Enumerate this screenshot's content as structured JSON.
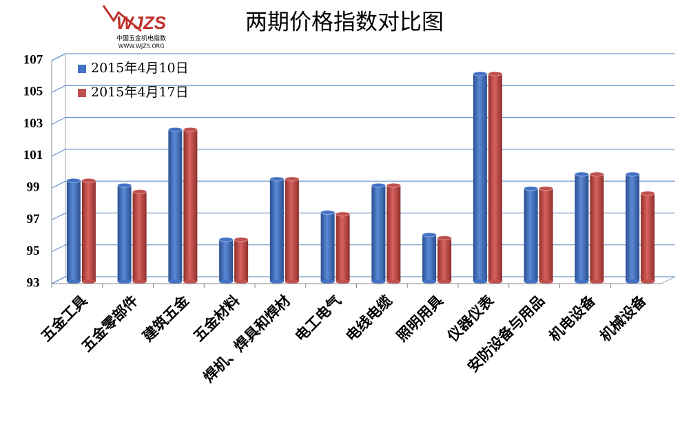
{
  "logo": {
    "mark": "WJZS",
    "name": "中国五金机电指数",
    "url": "WWW.WJZS.ORG"
  },
  "chart_data": {
    "type": "bar3d",
    "title": "两期价格指数对比图",
    "categories": [
      "五金工具",
      "五金零部件",
      "建筑五金",
      "五金材料",
      "焊机、焊具和焊材",
      "电工电气",
      "电线电缆",
      "照明用具",
      "仪器仪表",
      "安防设备与用品",
      "机电设备",
      "机械设备"
    ],
    "series": [
      {
        "name": "2015年4月10日",
        "color": "#4472c4",
        "values": [
          99.6,
          99.3,
          102.8,
          95.9,
          99.7,
          97.6,
          99.3,
          96.2,
          106.3,
          99.1,
          100.0,
          100.0
        ]
      },
      {
        "name": "2015年4月17日",
        "color": "#c0504d",
        "values": [
          99.6,
          98.9,
          102.8,
          95.9,
          99.7,
          97.5,
          99.3,
          96.0,
          106.3,
          99.1,
          100.0,
          98.8
        ]
      }
    ],
    "ylim": [
      93,
      107
    ],
    "yticks": [
      93,
      95,
      97,
      99,
      101,
      103,
      105,
      107
    ],
    "grid": true,
    "legend": "top-left"
  }
}
